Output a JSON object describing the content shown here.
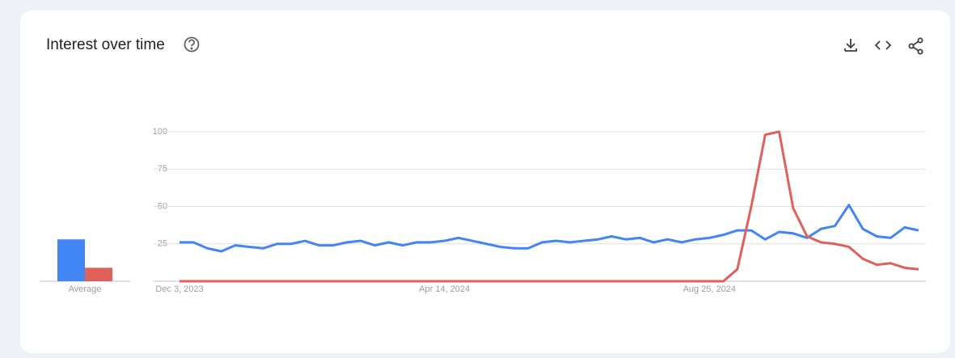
{
  "chart_data": {
    "type": "line",
    "title": "Interest over time",
    "categories": [
      "Dec 3, 2023",
      null,
      null,
      null,
      null,
      null,
      null,
      null,
      null,
      null,
      null,
      null,
      null,
      null,
      null,
      null,
      null,
      null,
      null,
      "Apr 14, 2024",
      null,
      null,
      null,
      null,
      null,
      null,
      null,
      null,
      null,
      null,
      null,
      null,
      null,
      null,
      null,
      null,
      null,
      null,
      "Aug 25, 2024",
      null,
      null,
      null,
      null,
      null,
      null,
      null,
      null,
      null,
      null,
      null,
      null,
      null,
      null,
      null
    ],
    "series": [
      {
        "color": "#4285f4",
        "average": 28,
        "values": [
          26,
          26,
          22,
          20,
          24,
          23,
          22,
          25,
          25,
          27,
          24,
          24,
          26,
          27,
          24,
          26,
          24,
          26,
          26,
          27,
          29,
          27,
          25,
          23,
          22,
          22,
          26,
          27,
          26,
          27,
          28,
          30,
          28,
          29,
          26,
          28,
          26,
          28,
          29,
          31,
          34,
          34,
          28,
          33,
          32,
          29,
          35,
          37,
          51,
          35,
          30,
          29,
          36,
          34
        ]
      },
      {
        "color": "#e0605a",
        "average": 9,
        "values": [
          0,
          0,
          0,
          0,
          0,
          0,
          0,
          0,
          0,
          0,
          0,
          0,
          0,
          0,
          0,
          0,
          0,
          0,
          0,
          0,
          0,
          0,
          0,
          0,
          0,
          0,
          0,
          0,
          0,
          0,
          0,
          0,
          0,
          0,
          0,
          0,
          0,
          0,
          0,
          0,
          8,
          50,
          98,
          100,
          49,
          30,
          26,
          25,
          23,
          15,
          11,
          12,
          9,
          8
        ]
      }
    ],
    "average_label": "Average",
    "ylim": [
      0,
      100
    ],
    "yticks": [
      25,
      50,
      75,
      100
    ],
    "grid": true
  }
}
